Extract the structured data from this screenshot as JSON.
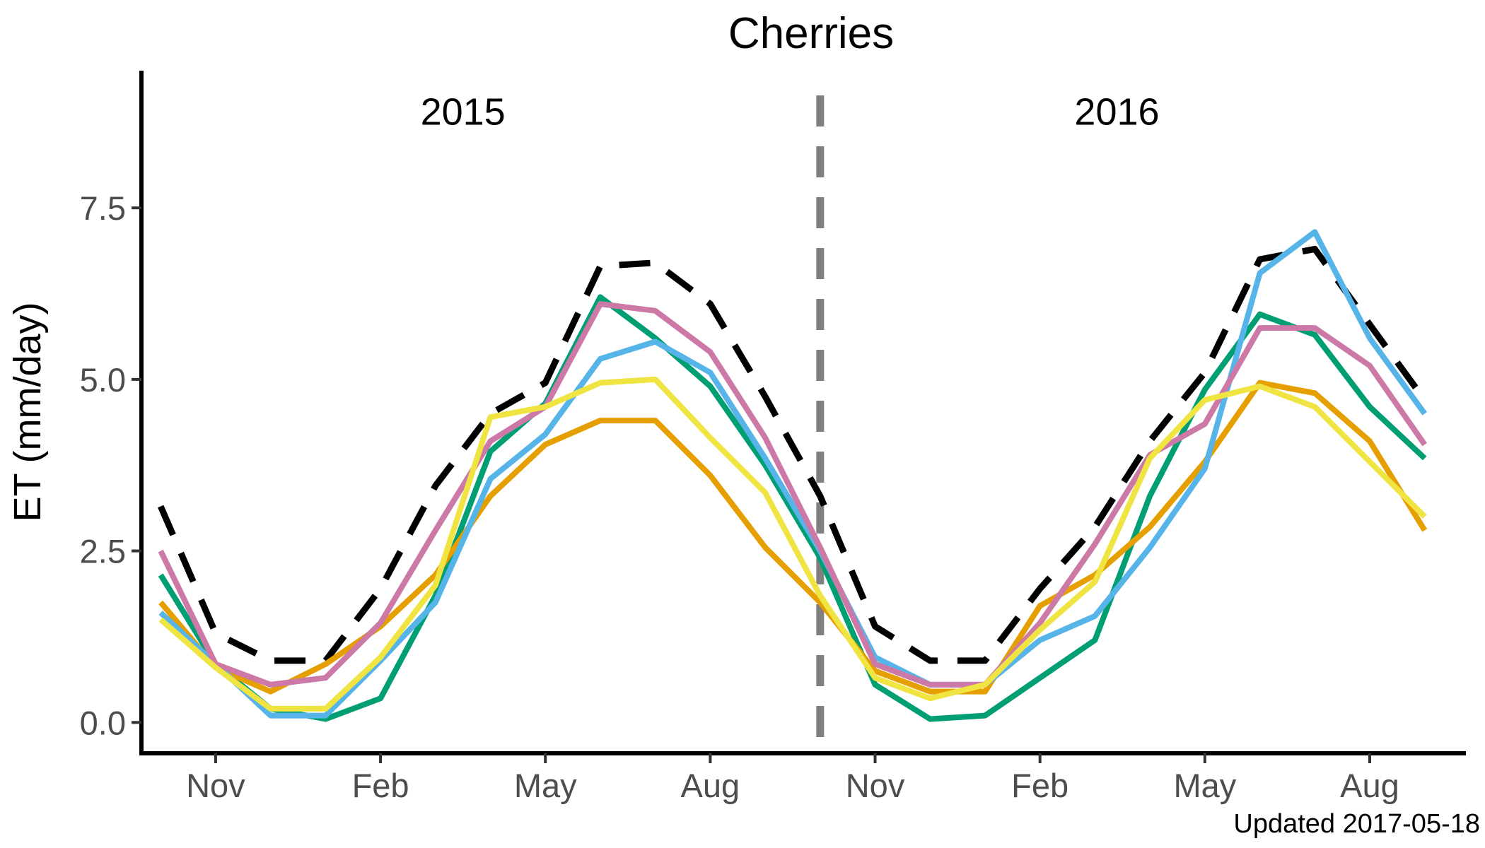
{
  "chart_data": {
    "type": "line",
    "title": "Cherries",
    "xlabel": "",
    "ylabel": "ET (mm/day)",
    "caption": "Updated  2017-05-18",
    "ylim": [
      -0.45,
      9.5
    ],
    "yticks": [
      0.0,
      2.5,
      5.0,
      7.5
    ],
    "ytick_labels": [
      "0.0",
      "2.5",
      "5.0",
      "7.5"
    ],
    "x_month_index": [
      -1,
      0,
      1,
      2,
      3,
      4,
      5,
      6,
      7,
      8,
      9,
      10,
      11,
      12,
      13,
      14,
      15,
      16,
      17,
      18,
      19,
      20,
      21,
      22
    ],
    "xlim": [
      -1.35,
      22.75
    ],
    "xticks": [
      0,
      3,
      6,
      9,
      12,
      15,
      18,
      21
    ],
    "xtick_labels": [
      "Nov",
      "Feb",
      "May",
      "Aug",
      "Nov",
      "Feb",
      "May",
      "Aug"
    ],
    "year_divider_x": 11,
    "year_labels": [
      {
        "text": "2015",
        "x": 4.5,
        "y": 8.9
      },
      {
        "text": "2016",
        "x": 16.4,
        "y": 8.9
      }
    ],
    "reference_series": {
      "dashed": true,
      "color": "#000000",
      "values": [
        3.15,
        1.3,
        0.9,
        0.9,
        1.95,
        3.45,
        4.5,
        4.95,
        6.65,
        6.7,
        6.1,
        4.75,
        3.3,
        1.4,
        0.9,
        0.9,
        1.95,
        2.85,
        4.1,
        5.1,
        6.75,
        6.9,
        5.8,
        4.7
      ]
    },
    "series": [
      {
        "color": "#009E73",
        "values": [
          2.15,
          0.85,
          0.2,
          0.05,
          0.35,
          1.85,
          3.95,
          4.65,
          6.2,
          5.6,
          4.9,
          3.75,
          2.4,
          0.55,
          0.05,
          0.1,
          0.65,
          1.2,
          3.3,
          4.85,
          5.95,
          5.65,
          4.6,
          3.85
        ]
      },
      {
        "color": "#E69F00",
        "values": [
          1.75,
          0.8,
          0.45,
          0.85,
          1.4,
          2.15,
          3.3,
          4.05,
          4.4,
          4.4,
          3.6,
          2.55,
          1.75,
          0.75,
          0.45,
          0.45,
          1.7,
          2.15,
          2.85,
          3.8,
          4.95,
          4.8,
          4.1,
          2.8
        ]
      },
      {
        "color": "#56B4E9",
        "values": [
          1.6,
          0.85,
          0.1,
          0.1,
          0.9,
          1.75,
          3.55,
          4.2,
          5.3,
          5.55,
          5.1,
          3.85,
          2.5,
          0.95,
          0.55,
          0.55,
          1.2,
          1.55,
          2.55,
          3.7,
          6.55,
          7.15,
          5.6,
          4.5
        ]
      },
      {
        "color": "#CC79A7",
        "values": [
          2.5,
          0.85,
          0.55,
          0.65,
          1.45,
          2.8,
          4.1,
          4.6,
          6.1,
          6.0,
          5.4,
          4.15,
          2.55,
          0.85,
          0.55,
          0.55,
          1.45,
          2.6,
          3.9,
          4.35,
          5.75,
          5.75,
          5.2,
          4.05
        ]
      },
      {
        "color": "#F0E442",
        "values": [
          1.5,
          0.8,
          0.2,
          0.2,
          0.95,
          2.0,
          4.45,
          4.6,
          4.95,
          5.0,
          4.15,
          3.35,
          1.85,
          0.65,
          0.35,
          0.55,
          1.35,
          2.05,
          3.85,
          4.7,
          4.9,
          4.6,
          3.8,
          3.0
        ]
      }
    ],
    "legend": "none",
    "grid": false
  }
}
